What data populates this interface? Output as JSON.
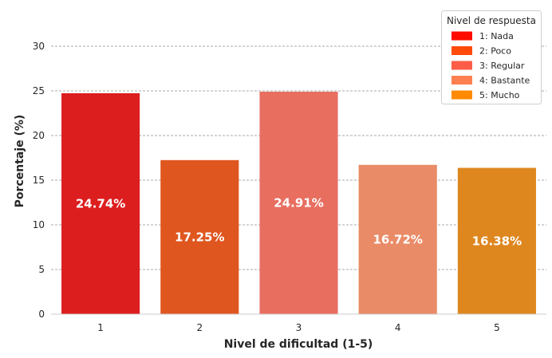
{
  "chart_data": {
    "type": "bar",
    "xlabel": "Nivel de dificultad (1-5)",
    "ylabel": "Porcentaje (%)",
    "categories": [
      "1",
      "2",
      "3",
      "4",
      "5"
    ],
    "values": [
      24.74,
      17.25,
      24.91,
      16.72,
      16.38
    ],
    "data_labels": [
      "24.74%",
      "17.25%",
      "24.91%",
      "16.72%",
      "16.38%"
    ],
    "colors": [
      "#dd1e1f",
      "#df561f",
      "#e86e60",
      "#ea8b67",
      "#de871f"
    ],
    "ylim": [
      0,
      32.5
    ],
    "yticks": [
      0,
      5,
      10,
      15,
      20,
      25,
      30
    ],
    "grid": "horizontal dashed",
    "legend": {
      "title": "Nivel de respuesta",
      "placement": "top-right",
      "items": [
        {
          "label": "1: Nada",
          "color": "#ff0c00"
        },
        {
          "label": "2: Poco",
          "color": "#ff4a0a"
        },
        {
          "label": "3: Regular",
          "color": "#fb5d47"
        },
        {
          "label": "4: Bastante",
          "color": "#fd8050"
        },
        {
          "label": "5: Mucho",
          "color": "#ff8a00"
        }
      ]
    }
  }
}
